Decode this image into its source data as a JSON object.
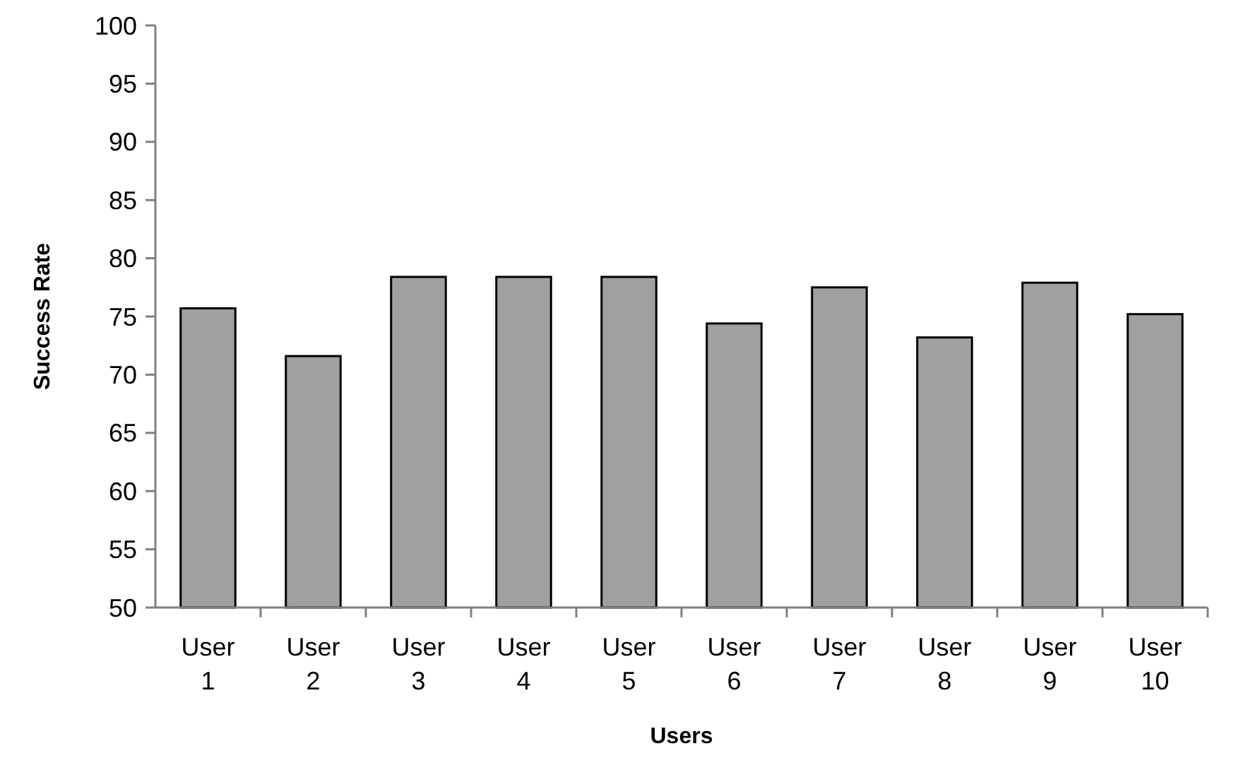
{
  "chart_data": {
    "type": "bar",
    "xlabel": "Users",
    "ylabel": "Success Rate",
    "categories": [
      "User 1",
      "User 2",
      "User 3",
      "User 4",
      "User 5",
      "User 6",
      "User 7",
      "User 8",
      "User 9",
      "User 10"
    ],
    "values": [
      75.7,
      71.6,
      78.4,
      78.4,
      78.4,
      74.4,
      77.5,
      73.2,
      77.9,
      75.2
    ],
    "color": "#a0a0a0",
    "ylim": [
      50,
      100
    ],
    "yticks": [
      50,
      55,
      60,
      65,
      70,
      75,
      80,
      85,
      90,
      95,
      100
    ]
  }
}
